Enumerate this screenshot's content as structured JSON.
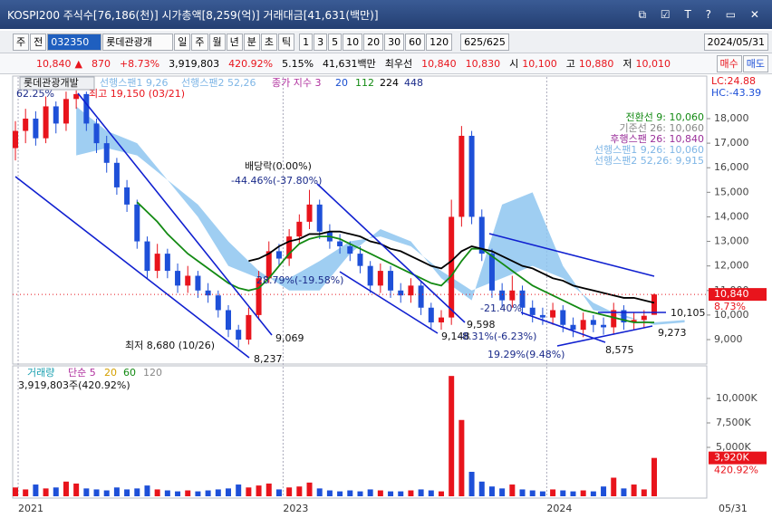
{
  "header": {
    "title": "KOSPI200 주식수[76,186(천)] 시가총액[8,259(억)] 거래대금[41,631(백만)]"
  },
  "toolbar": {
    "market": "주",
    "prev": "전",
    "code": "032350",
    "name": "롯데관광개",
    "periods": [
      "일",
      "주",
      "월",
      "년",
      "분",
      "초",
      "틱"
    ],
    "intervals": [
      "1",
      "3",
      "5",
      "10",
      "20",
      "30",
      "60",
      "120"
    ],
    "count": "625/625",
    "date": "2024/05/31"
  },
  "quote": {
    "price": "10,840",
    "arrow": "▲",
    "change": "870",
    "rate": "+8.73%",
    "volume": "3,919,803",
    "volume_ratio": "420.92%",
    "turnover": "5.15%",
    "amount": "41,631백만",
    "best_label": "최우선",
    "ask": "10,840",
    "bid": "10,830",
    "open_label": "시",
    "open": "10,100",
    "high_label": "고",
    "high": "10,880",
    "low_label": "저",
    "low": "10,010",
    "buy": "매수",
    "sell": "매도"
  },
  "chart_data": [
    {
      "type": "candlestick",
      "title": "롯데관광개발",
      "legend": [
        {
          "name": "선행스팬1 9,26",
          "color": "#7fb6e6"
        },
        {
          "name": "선행스팬2 52,26",
          "color": "#7fb6e6"
        },
        {
          "name": "종가 지수 3",
          "color": "#b0309e"
        },
        {
          "name": "20",
          "color": "#1a4fd0"
        },
        {
          "name": "112",
          "color": "#138a13"
        },
        {
          "name": "224",
          "color": "#000000"
        },
        {
          "name": "448",
          "color": "#1a2a8a"
        }
      ],
      "up_color": "#e8141c",
      "down_color": "#1e50d8",
      "open": [
        16800,
        17500,
        18000,
        17200,
        18500,
        17800,
        18800,
        19000,
        17800,
        17000,
        16200,
        15200,
        14500,
        13000,
        11800,
        12500,
        11800,
        11200,
        11600,
        11000,
        10800,
        10200,
        9400,
        9000,
        10000,
        11500,
        12600,
        12300,
        13200,
        13800,
        14500,
        13400,
        13000,
        12800,
        12500,
        12000,
        11200,
        11800,
        11000,
        10800,
        11200,
        10300,
        9700,
        9900,
        14000,
        17300,
        14000,
        12500,
        11000,
        10600,
        11000,
        10300,
        10000,
        9900,
        10200,
        9600,
        9400,
        9800,
        9600,
        9500,
        10200,
        9700,
        9800,
        10010
      ],
      "high": [
        17900,
        18400,
        18300,
        18900,
        18700,
        19100,
        19150,
        19100,
        18000,
        17300,
        16400,
        15500,
        14700,
        13200,
        12900,
        12700,
        12100,
        12000,
        11800,
        11300,
        11000,
        10400,
        9600,
        10300,
        11800,
        13000,
        12900,
        13500,
        14100,
        15100,
        14700,
        13700,
        13300,
        13000,
        12800,
        12200,
        12100,
        12000,
        11300,
        11500,
        11400,
        10500,
        10200,
        14700,
        17700,
        17500,
        14300,
        12700,
        11300,
        11600,
        11200,
        10600,
        10300,
        10500,
        10400,
        9900,
        10100,
        10000,
        9900,
        10500,
        10400,
        10100,
        10200,
        10880
      ],
      "low": [
        16300,
        17000,
        16900,
        17000,
        17400,
        17500,
        18400,
        17500,
        16600,
        15800,
        14900,
        14200,
        12700,
        11500,
        11500,
        11500,
        10900,
        10900,
        10700,
        10500,
        9900,
        9100,
        8680,
        8800,
        9800,
        11300,
        12000,
        12000,
        12900,
        13500,
        13100,
        12700,
        12500,
        12200,
        11700,
        10900,
        10900,
        10700,
        10500,
        10500,
        10000,
        9400,
        9400,
        9600,
        13600,
        13700,
        12200,
        10700,
        10300,
        10300,
        10000,
        9700,
        9600,
        9600,
        9300,
        9100,
        9100,
        9300,
        9200,
        9200,
        9400,
        9400,
        9500,
        10010
      ],
      "close": [
        17500,
        18000,
        17200,
        18500,
        17800,
        18800,
        19000,
        17800,
        17000,
        16200,
        15200,
        14500,
        13000,
        11800,
        12500,
        11800,
        11200,
        11600,
        11000,
        10800,
        10200,
        9400,
        9000,
        10000,
        11500,
        12600,
        12300,
        13200,
        13800,
        14500,
        13400,
        13000,
        12800,
        12500,
        12000,
        11200,
        11800,
        11000,
        10800,
        11200,
        10300,
        9700,
        9900,
        14000,
        17300,
        14000,
        12500,
        11000,
        10600,
        11000,
        10300,
        10000,
        9900,
        10200,
        9600,
        9400,
        9800,
        9600,
        9500,
        10200,
        9700,
        9800,
        9970,
        10840
      ],
      "ma": [
        {
          "color": "#138a13",
          "values": [
            null,
            null,
            null,
            null,
            null,
            null,
            null,
            null,
            null,
            null,
            null,
            null,
            14600,
            14200,
            13800,
            13300,
            12900,
            12500,
            12200,
            11900,
            11600,
            11300,
            11100,
            11000,
            11100,
            11500,
            12000,
            12500,
            12900,
            13100,
            13200,
            13200,
            13100,
            12900,
            12700,
            12500,
            12300,
            12100,
            11900,
            11700,
            11500,
            11300,
            11200,
            11600,
            12200,
            12700,
            12700,
            12400,
            12100,
            11800,
            11500,
            11200,
            11000,
            10800,
            10600,
            10400,
            10200,
            10100,
            10000,
            9900,
            9800,
            9700,
            9700,
            9700
          ]
        },
        {
          "color": "#000000",
          "values": [
            null,
            null,
            null,
            null,
            null,
            null,
            null,
            null,
            null,
            null,
            null,
            null,
            null,
            null,
            null,
            null,
            null,
            null,
            null,
            null,
            null,
            null,
            null,
            12200,
            12300,
            12500,
            12800,
            13000,
            13100,
            13300,
            13300,
            13400,
            13400,
            13300,
            13200,
            13000,
            12900,
            12700,
            12600,
            12400,
            12200,
            12000,
            11900,
            12200,
            12600,
            12800,
            12700,
            12600,
            12400,
            12200,
            12000,
            11900,
            11700,
            11500,
            11400,
            11200,
            11100,
            11000,
            10900,
            10800,
            10700,
            10700,
            10600,
            10500
          ]
        }
      ],
      "cloud": {
        "color": "#8ec5f0",
        "x": [
          6,
          9,
          12,
          15,
          18,
          21,
          24,
          27,
          30,
          33,
          36,
          39,
          42,
          45,
          48,
          51,
          54,
          57,
          60,
          63,
          66
        ],
        "span1": [
          18500,
          17500,
          17000,
          15500,
          14500,
          13000,
          11800,
          11000,
          11000,
          12500,
          13500,
          13000,
          11500,
          10600,
          14500,
          15000,
          12000,
          10200,
          10000,
          9600,
          9700
        ],
        "span2": [
          16500,
          16800,
          16500,
          15500,
          14000,
          12000,
          11500,
          11500,
          12200,
          13000,
          13200,
          12800,
          11800,
          11000,
          11500,
          12000,
          11500,
          10500,
          9900,
          9700,
          9800
        ]
      },
      "ylim": [
        8078,
        19586
      ],
      "yticks": [
        {
          "value": 9000,
          "label": "9,000"
        },
        {
          "value": 10000,
          "label": "10,000"
        },
        {
          "value": 11000,
          "label": "11,000"
        },
        {
          "value": 12000,
          "label": "12,000"
        },
        {
          "value": 13000,
          "label": "13,000"
        },
        {
          "value": 14000,
          "label": "14,000"
        },
        {
          "value": 15000,
          "label": "15,000"
        },
        {
          "value": 16000,
          "label": "16,000"
        },
        {
          "value": 17000,
          "label": "17,000"
        },
        {
          "value": 18000,
          "label": "18,000"
        }
      ],
      "xticks": [
        {
          "value": 0.27,
          "label": "2021"
        },
        {
          "value": 26.4,
          "label": "2023"
        },
        {
          "value": 52.4,
          "label": "2024"
        }
      ],
      "end_label": "05/31",
      "lc": "LC:24.88",
      "hc": "HC:-43.39",
      "ichimoku_labels": [
        {
          "text": "전환선 9: 10,060",
          "color": "#138a13"
        },
        {
          "text": "기준선 26: 10,060",
          "color": "#888888"
        },
        {
          "text": "후행스팬 26: 10,840",
          "color": "#9a2f9a"
        },
        {
          "text": "선행스팬1 9,26: 10,060",
          "color": "#7fb6e6"
        },
        {
          "text": "선행스팬2 52,26: 9,915",
          "color": "#7fb6e6"
        }
      ],
      "price_tag": {
        "value": 10840,
        "label": "10,840",
        "change": "8.73%"
      },
      "annotations": [
        "최고 19,150 (03/21)",
        "최저 8,680 (10/26)",
        "배당락(0.00%)",
        "-44.46%(-37.80%)",
        "9,069",
        "8,237",
        "28.79%(-19.58%)",
        "9,598",
        "9,148",
        "-21.40%",
        "19.29%(9.48%)",
        "8,575",
        "10,105",
        "9,273",
        "62.25%",
        "-8.31%(-6.23%)"
      ]
    },
    {
      "type": "bar",
      "title": "거래량",
      "subtitle": "3,919,803주(420.92%)",
      "legend": [
        {
          "name": "단순 5",
          "color": "#b0309e"
        },
        {
          "name": "20",
          "color": "#d4a000"
        },
        {
          "name": "60",
          "color": "#138a13"
        },
        {
          "name": "120",
          "color": "#888888"
        }
      ],
      "up_color": "#e8141c",
      "down_color": "#1e50d8",
      "values": [
        900,
        700,
        1200,
        800,
        900,
        1500,
        1300,
        800,
        700,
        600,
        900,
        700,
        800,
        1100,
        700,
        600,
        500,
        600,
        500,
        600,
        700,
        800,
        1200,
        900,
        1100,
        1300,
        700,
        900,
        1000,
        1400,
        800,
        600,
        500,
        600,
        500,
        700,
        600,
        500,
        500,
        600,
        700,
        600,
        500,
        12300,
        7800,
        2500,
        1500,
        1000,
        800,
        1200,
        700,
        600,
        500,
        700,
        600,
        500,
        600,
        500,
        1000,
        1900,
        800,
        1200,
        700,
        3920
      ],
      "ylim": [
        0,
        13241
      ],
      "yticks": [
        {
          "value": 5000,
          "label": "5,000K"
        },
        {
          "value": 7500,
          "label": "7,500K"
        },
        {
          "value": 10000,
          "label": "10,000K"
        }
      ],
      "volume_tag": {
        "value": 3920,
        "label": "3,920K",
        "ratio": "420.92%"
      }
    }
  ]
}
